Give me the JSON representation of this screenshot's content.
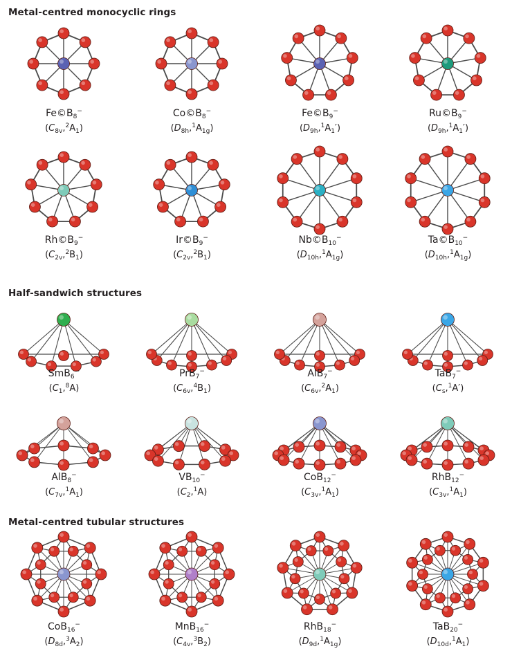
{
  "sections": [
    {
      "title": "Metal-centred monocyclic rings",
      "items": [
        {
          "formula": "Fe©B8−",
          "symmetry": "(C8v,2A1)",
          "metal_color": "#5b62b3",
          "kind": "ring",
          "n": 8
        },
        {
          "formula": "Co©B8−",
          "symmetry": "(D8h,1A1g)",
          "metal_color": "#8a96cf",
          "kind": "ring",
          "n": 8
        },
        {
          "formula": "Fe©B9−",
          "symmetry": "(D9h,1A1′)",
          "metal_color": "#5b62b3",
          "kind": "ring",
          "n": 9
        },
        {
          "formula": "Ru©B9−",
          "symmetry": "(D9h,1A1′)",
          "metal_color": "#1e9a7c",
          "kind": "ring",
          "n": 9
        },
        {
          "formula": "Rh©B9−",
          "symmetry": "(C2v,2B1)",
          "metal_color": "#7fcbb9",
          "kind": "ring",
          "n": 9
        },
        {
          "formula": "Ir©B9−",
          "symmetry": "(C2v,2B1)",
          "metal_color": "#2f8fd6",
          "kind": "ring",
          "n": 9
        },
        {
          "formula": "Nb©B10−",
          "symmetry": "(D10h,1A1g)",
          "metal_color": "#2ab0c4",
          "kind": "ring",
          "n": 10
        },
        {
          "formula": "Ta©B10−",
          "symmetry": "(D10h,1A1g)",
          "metal_color": "#3aa6e6",
          "kind": "ring",
          "n": 10
        }
      ]
    },
    {
      "title": "Half-sandwich structures",
      "items": [
        {
          "formula": "SmB6−",
          "symmetry": "(C1,8A)",
          "metal_color": "#2fae4e",
          "kind": "half",
          "n": 6
        },
        {
          "formula": "PrB7−",
          "symmetry": "(C6v,4B1)",
          "metal_color": "#a9dca0",
          "kind": "half",
          "n": 7
        },
        {
          "formula": "AlB7−",
          "symmetry": "(C6v,2A1)",
          "metal_color": "#d4a29b",
          "kind": "half",
          "n": 7
        },
        {
          "formula": "TaB7−",
          "symmetry": "(Cs,1A′)",
          "metal_color": "#3aa6e6",
          "kind": "half",
          "n": 7
        },
        {
          "formula": "AlB8−",
          "symmetry": "(C7v,1A1)",
          "metal_color": "#d4a29b",
          "kind": "half2",
          "n": 8
        },
        {
          "formula": "VB10−",
          "symmetry": "(C2,1A)",
          "metal_color": "#c9e3e0",
          "kind": "half2",
          "n": 10
        },
        {
          "formula": "CoB12−",
          "symmetry": "(C3v,1A1)",
          "metal_color": "#8a96cf",
          "kind": "half2",
          "n": 12
        },
        {
          "formula": "RhB12−",
          "symmetry": "(C3v,1A1)",
          "metal_color": "#7fcbb9",
          "kind": "half2",
          "n": 12
        }
      ]
    },
    {
      "title": "Metal-centred tubular structures",
      "items": [
        {
          "formula": "CoB16−",
          "symmetry": "(D8d,3A2)",
          "metal_color": "#8a96cf",
          "kind": "tube",
          "n": 16
        },
        {
          "formula": "MnB16−",
          "symmetry": "(C4v,3B2)",
          "metal_color": "#b07fc9",
          "kind": "tube",
          "n": 16
        },
        {
          "formula": "RhB18−",
          "symmetry": "(D9d,1A1g)",
          "metal_color": "#7fcbb9",
          "kind": "tube",
          "n": 18
        },
        {
          "formula": "TaB20−",
          "symmetry": "(D10d,1A1)",
          "metal_color": "#3aa6e6",
          "kind": "tube",
          "n": 20
        }
      ]
    }
  ],
  "boron_color": "#d9352a"
}
